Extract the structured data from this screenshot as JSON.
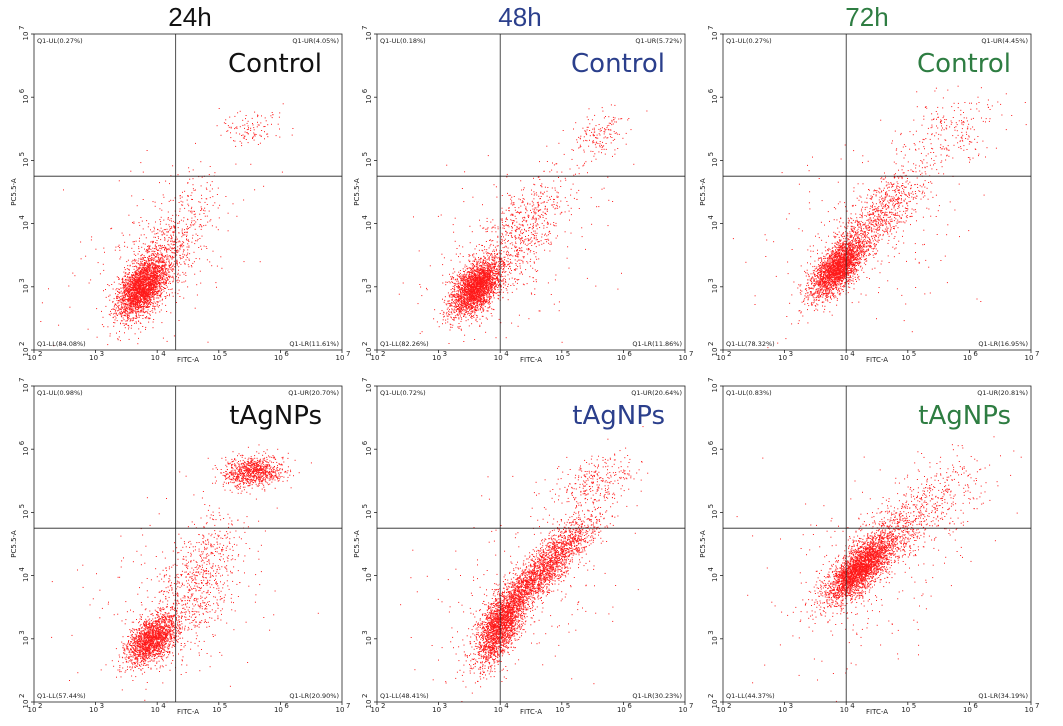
{
  "column_titles": [
    {
      "text": "24h",
      "color": "#111111"
    },
    {
      "text": "48h",
      "color": "#2b3f8c"
    },
    {
      "text": "72h",
      "color": "#2e7d42"
    }
  ],
  "axes": {
    "xlabel": "FITC-A",
    "ylabel": "PC5.5-A",
    "log_range": [
      2,
      7
    ],
    "x_ticks": [
      "10",
      "10",
      "10",
      "10",
      "10",
      "10"
    ],
    "x_tick_exp": [
      "2",
      "3",
      "4",
      "5",
      "6",
      "7"
    ],
    "y_ticks": [
      "10",
      "10",
      "10",
      "10",
      "10",
      "10"
    ],
    "y_tick_exp": [
      "2",
      "3",
      "4",
      "5",
      "6",
      "7"
    ]
  },
  "chart_data": [
    {
      "type": "scatter",
      "time": "24h",
      "condition": "Control",
      "label_color": "#111111",
      "gate": {
        "x": 4.3,
        "y": 4.75
      },
      "quadrants": {
        "UL": "Q1-UL(0.27%)",
        "UR": "Q1-UR(4.05%)",
        "LL": "Q1-LL(84.08%)",
        "LR": "Q1-LR(11.61%)"
      },
      "clusters": [
        {
          "cx": 3.75,
          "cy": 3.0,
          "sx": 0.2,
          "sy": 0.24,
          "rho": 0.5,
          "n": 2600
        },
        {
          "cx": 4.2,
          "cy": 3.6,
          "sx": 0.35,
          "sy": 0.45,
          "rho": 0.6,
          "n": 650
        },
        {
          "cx": 5.5,
          "cy": 5.5,
          "sx": 0.25,
          "sy": 0.15,
          "rho": 0.3,
          "n": 110
        },
        {
          "cx": 4.0,
          "cy": 3.5,
          "sx": 0.8,
          "sy": 0.8,
          "rho": 0.3,
          "n": 220
        }
      ]
    },
    {
      "type": "scatter",
      "time": "48h",
      "condition": "Control",
      "label_color": "#2b3f8c",
      "gate": {
        "x": 4.0,
        "y": 4.75
      },
      "quadrants": {
        "UL": "Q1-UL(0.18%)",
        "UR": "Q1-UR(5.72%)",
        "LL": "Q1-LL(82.26%)",
        "LR": "Q1-LR(11.86%)"
      },
      "clusters": [
        {
          "cx": 3.6,
          "cy": 3.0,
          "sx": 0.2,
          "sy": 0.22,
          "rho": 0.5,
          "n": 2600
        },
        {
          "cx": 4.3,
          "cy": 3.8,
          "sx": 0.4,
          "sy": 0.5,
          "rho": 0.65,
          "n": 700
        },
        {
          "cx": 5.6,
          "cy": 5.4,
          "sx": 0.22,
          "sy": 0.18,
          "rho": 0.3,
          "n": 160
        },
        {
          "cx": 4.0,
          "cy": 3.5,
          "sx": 0.8,
          "sy": 0.8,
          "rho": 0.3,
          "n": 220
        }
      ]
    },
    {
      "type": "scatter",
      "time": "72h",
      "condition": "Control",
      "label_color": "#2e7d42",
      "gate": {
        "x": 4.0,
        "y": 4.75
      },
      "quadrants": {
        "UL": "Q1-UL(0.27%)",
        "UR": "Q1-UR(4.45%)",
        "LL": "Q1-LL(78.32%)",
        "LR": "Q1-LR(16.95%)"
      },
      "clusters": [
        {
          "cx": 3.85,
          "cy": 3.3,
          "sx": 0.22,
          "sy": 0.24,
          "rho": 0.65,
          "n": 2400
        },
        {
          "cx": 4.5,
          "cy": 4.1,
          "sx": 0.4,
          "sy": 0.42,
          "rho": 0.75,
          "n": 900
        },
        {
          "cx": 5.7,
          "cy": 5.5,
          "sx": 0.4,
          "sy": 0.3,
          "rho": 0.4,
          "n": 220
        },
        {
          "cx": 4.3,
          "cy": 3.8,
          "sx": 0.8,
          "sy": 0.8,
          "rho": 0.3,
          "n": 220
        }
      ]
    },
    {
      "type": "scatter",
      "time": "24h",
      "condition": "tAgNPs",
      "label_color": "#111111",
      "gate": {
        "x": 4.3,
        "y": 4.75
      },
      "quadrants": {
        "UL": "Q1-UL(0.98%)",
        "UR": "Q1-UR(20.70%)",
        "LL": "Q1-LL(57.44%)",
        "LR": "Q1-LR(20.90%)"
      },
      "clusters": [
        {
          "cx": 3.9,
          "cy": 3.0,
          "sx": 0.2,
          "sy": 0.2,
          "rho": 0.5,
          "n": 1800
        },
        {
          "cx": 4.6,
          "cy": 3.8,
          "sx": 0.35,
          "sy": 0.55,
          "rho": 0.55,
          "n": 700
        },
        {
          "cx": 5.55,
          "cy": 5.65,
          "sx": 0.25,
          "sy": 0.12,
          "rho": 0.1,
          "n": 900
        },
        {
          "cx": 4.3,
          "cy": 3.8,
          "sx": 0.8,
          "sy": 0.8,
          "rho": 0.3,
          "n": 250
        }
      ]
    },
    {
      "type": "scatter",
      "time": "48h",
      "condition": "tAgNPs",
      "label_color": "#2b3f8c",
      "gate": {
        "x": 4.0,
        "y": 4.75
      },
      "quadrants": {
        "UL": "Q1-UL(0.72%)",
        "UR": "Q1-UR(20.64%)",
        "LL": "Q1-LL(48.41%)",
        "LR": "Q1-LR(30.23%)"
      },
      "clusters": [
        {
          "cx": 4.0,
          "cy": 3.2,
          "sx": 0.2,
          "sy": 0.3,
          "rho": 0.6,
          "n": 2000
        },
        {
          "cx": 4.7,
          "cy": 4.1,
          "sx": 0.45,
          "sy": 0.45,
          "rho": 0.9,
          "n": 2300
        },
        {
          "cx": 5.5,
          "cy": 5.5,
          "sx": 0.35,
          "sy": 0.25,
          "rho": 0.5,
          "n": 280
        },
        {
          "cx": 4.3,
          "cy": 3.8,
          "sx": 0.8,
          "sy": 0.8,
          "rho": 0.3,
          "n": 220
        }
      ]
    },
    {
      "type": "scatter",
      "time": "72h",
      "condition": "tAgNPs",
      "label_color": "#2e7d42",
      "gate": {
        "x": 4.0,
        "y": 4.75
      },
      "quadrants": {
        "UL": "Q1-UL(0.83%)",
        "UR": "Q1-UR(20.81%)",
        "LL": "Q1-LL(44.37%)",
        "LR": "Q1-LR(34.19%)"
      },
      "clusters": [
        {
          "cx": 4.2,
          "cy": 4.1,
          "sx": 0.25,
          "sy": 0.25,
          "rho": 0.75,
          "n": 2200
        },
        {
          "cx": 4.5,
          "cy": 4.4,
          "sx": 0.45,
          "sy": 0.42,
          "rho": 0.8,
          "n": 1200
        },
        {
          "cx": 5.5,
          "cy": 5.2,
          "sx": 0.45,
          "sy": 0.4,
          "rho": 0.5,
          "n": 300
        },
        {
          "cx": 4.3,
          "cy": 4.0,
          "sx": 0.8,
          "sy": 0.8,
          "rho": 0.3,
          "n": 220
        }
      ]
    }
  ]
}
